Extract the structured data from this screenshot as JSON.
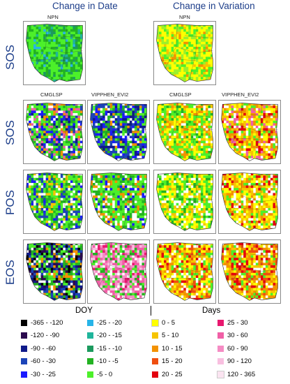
{
  "columns": {
    "left_title": "Change in Date",
    "right_title": "Change in Variation"
  },
  "rows": {
    "r1": "SOS",
    "r2": "SOS",
    "r3": "POS",
    "r4": "EOS"
  },
  "map_labels": {
    "npn_left": "NPN",
    "npn_right": "NPN",
    "cmg_left": "CMGLSP",
    "vip_left": "VIPPHEN_EVI2",
    "cmg_right": "CMGLSP",
    "vip_right": "VIPPHEN_EVI2"
  },
  "legend": {
    "doy_title": "DOY",
    "days_title": "Days",
    "doy_items": [
      {
        "label": "-365 - -120",
        "color": "#000000"
      },
      {
        "label": "-120 - -90",
        "color": "#2b0a4e"
      },
      {
        "label": "-90 - -60",
        "color": "#0f1a8a"
      },
      {
        "label": "-60 - -30",
        "color": "#1c44b8"
      },
      {
        "label": "-30 - -25",
        "color": "#1a1aff"
      },
      {
        "label": "-25 - -20",
        "color": "#27b4e8"
      },
      {
        "label": "-20 - -15",
        "color": "#1fb59b"
      },
      {
        "label": "-15 - -10",
        "color": "#1c9a5e"
      },
      {
        "label": "-10 - -5",
        "color": "#23b222"
      },
      {
        "label": "-5 - 0",
        "color": "#4df02a"
      }
    ],
    "days_items": [
      {
        "label": "0 - 5",
        "color": "#ffff00"
      },
      {
        "label": "5 - 10",
        "color": "#f6c400"
      },
      {
        "label": "10 - 15",
        "color": "#f39200"
      },
      {
        "label": "15 - 20",
        "color": "#ef4e10"
      },
      {
        "label": "20 - 25",
        "color": "#e3000f"
      },
      {
        "label": "25 - 30",
        "color": "#e8186f"
      },
      {
        "label": "30 - 60",
        "color": "#f05fa6"
      },
      {
        "label": "60 - 90",
        "color": "#f58cc4"
      },
      {
        "label": "90 - 120",
        "color": "#f8bfe0"
      },
      {
        "label": "120 - 365",
        "color": "#fbe4f1"
      }
    ]
  }
}
